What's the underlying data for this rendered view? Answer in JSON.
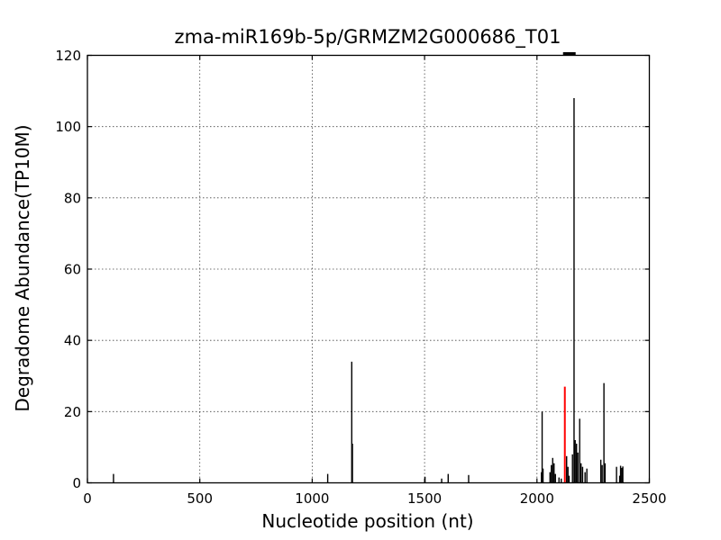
{
  "figure": {
    "title": "zma-miR169b-5p/GRMZM2G000686_T01"
  },
  "chart_data": {
    "type": "stem",
    "title": "zma-miR169b-5p/GRMZM2G000686_T01",
    "xlabel": "Nucleotide position (nt)",
    "ylabel": "Degradome Abundance(TP10M)",
    "xlim": [
      0,
      2500
    ],
    "ylim": [
      0,
      120
    ],
    "x_ticks": [
      0,
      500,
      1000,
      1500,
      2000,
      2500
    ],
    "y_ticks": [
      0,
      20,
      40,
      60,
      80,
      100,
      120
    ],
    "grid": "dotted",
    "legend": "none",
    "colors": {
      "stem": "#000000",
      "highlight_stem": "#ff0000",
      "target_marker": "#000000",
      "grid": "#444444"
    },
    "stems": [
      [
        116,
        2.5
      ],
      [
        1069,
        2.5
      ],
      [
        1176,
        34
      ],
      [
        1179,
        11
      ],
      [
        1502,
        1.7
      ],
      [
        1576,
        1.2
      ],
      [
        1605,
        2.5
      ],
      [
        1696,
        2.2
      ],
      [
        2020,
        3
      ],
      [
        2023,
        20
      ],
      [
        2027,
        4
      ],
      [
        2058,
        3
      ],
      [
        2064,
        5
      ],
      [
        2070,
        7
      ],
      [
        2076,
        5.5
      ],
      [
        2082,
        2.5
      ],
      [
        2098,
        1.5
      ],
      [
        2108,
        1.2
      ],
      [
        2132,
        7.5
      ],
      [
        2138,
        4.5
      ],
      [
        2143,
        2
      ],
      [
        2158,
        8
      ],
      [
        2165,
        108
      ],
      [
        2170,
        12
      ],
      [
        2176,
        11
      ],
      [
        2182,
        8.5
      ],
      [
        2190,
        18
      ],
      [
        2196,
        5.5
      ],
      [
        2203,
        4.5
      ],
      [
        2214,
        3
      ],
      [
        2222,
        4
      ],
      [
        2284,
        6.5
      ],
      [
        2290,
        5
      ],
      [
        2298,
        28
      ],
      [
        2303,
        5.5
      ],
      [
        2354,
        4.5
      ],
      [
        2368,
        2
      ],
      [
        2372,
        4.8
      ],
      [
        2377,
        4.2
      ],
      [
        2382,
        4.6
      ]
    ],
    "highlight_stem": {
      "x": 2124,
      "value": 27
    },
    "target_site_marker": {
      "x_start": 2116,
      "x_end": 2172,
      "position": "above-top-axis"
    }
  }
}
